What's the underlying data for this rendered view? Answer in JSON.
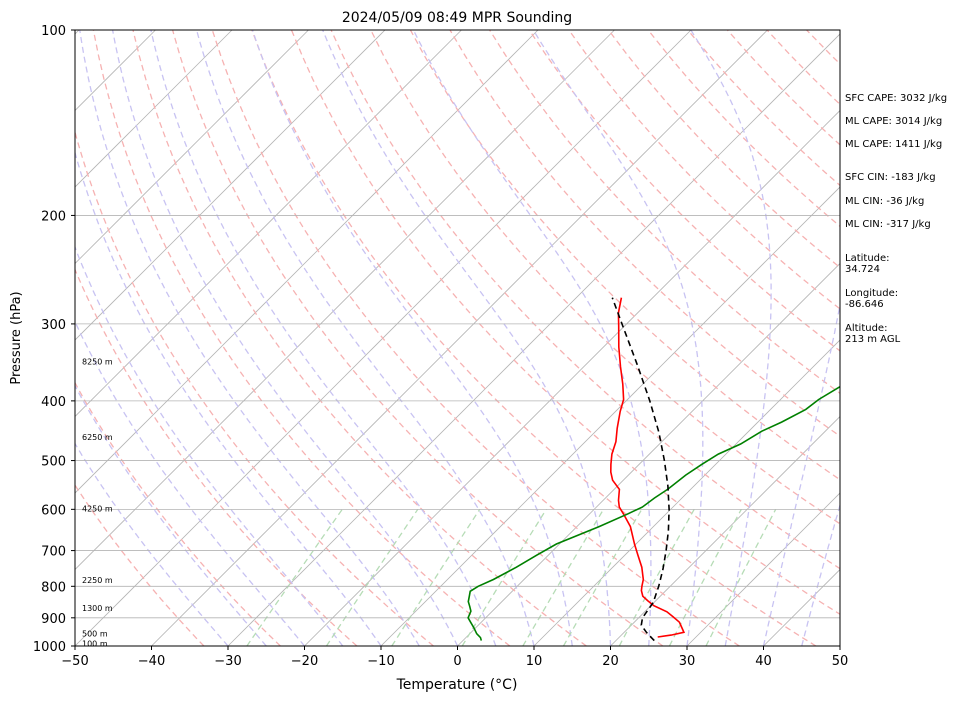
{
  "chart_data": {
    "type": "line",
    "title": "2024/05/09 08:49 MPR Sounding",
    "xlabel": "Temperature (°C)",
    "ylabel": "Pressure (hPa)",
    "xlim": [
      -50,
      50
    ],
    "ylim": [
      1000,
      100
    ],
    "y_scale": "log",
    "x_ticks": [
      "−50",
      "−40",
      "−30",
      "−20",
      "−10",
      "0",
      "10",
      "20",
      "30",
      "40",
      "50"
    ],
    "y_ticks": [
      "100",
      "200",
      "300",
      "400",
      "500",
      "600",
      "700",
      "800",
      "900",
      "1000"
    ],
    "grid": true,
    "height_labels": [
      {
        "p": 345,
        "text": "8250 m"
      },
      {
        "p": 458,
        "text": "6250 m"
      },
      {
        "p": 598,
        "text": "4250 m"
      },
      {
        "p": 782,
        "text": "2250 m"
      },
      {
        "p": 868,
        "text": "1300 m"
      },
      {
        "p": 954,
        "text": "500 m"
      },
      {
        "p": 991,
        "text": "100 m"
      }
    ],
    "series": [
      {
        "color": "#ff0000",
        "points": [
          [
            967,
            25
          ],
          [
            960,
            26.5
          ],
          [
            950,
            27.8
          ],
          [
            935,
            27
          ],
          [
            915,
            25.9
          ],
          [
            897,
            24.4
          ],
          [
            880,
            22.9
          ],
          [
            860,
            20.4
          ],
          [
            845,
            19.0
          ],
          [
            830,
            17.7
          ],
          [
            813,
            16.8
          ],
          [
            800,
            16.3
          ],
          [
            780,
            15.6
          ],
          [
            745,
            13.8
          ],
          [
            712,
            11.7
          ],
          [
            683,
            9.8
          ],
          [
            640,
            7.0
          ],
          [
            610,
            4.4
          ],
          [
            595,
            3.0
          ],
          [
            580,
            2.0
          ],
          [
            557,
            0.7
          ],
          [
            538,
            -1.4
          ],
          [
            522,
            -2.7
          ],
          [
            507,
            -3.7
          ],
          [
            488,
            -4.9
          ],
          [
            466,
            -6.0
          ],
          [
            443,
            -7.6
          ],
          [
            416,
            -9.4
          ],
          [
            398,
            -10.5
          ],
          [
            376,
            -12.6
          ],
          [
            352,
            -15.2
          ],
          [
            327,
            -18.0
          ],
          [
            302,
            -20.8
          ],
          [
            288,
            -22.5
          ],
          [
            272,
            -24.1
          ]
        ]
      },
      {
        "color": "#008000",
        "points": [
          [
            980,
            2.4
          ],
          [
            969,
            1.9
          ],
          [
            955,
            0.9
          ],
          [
            935,
            -0.2
          ],
          [
            915,
            -1.4
          ],
          [
            900,
            -2.3
          ],
          [
            878,
            -2.8
          ],
          [
            862,
            -3.6
          ],
          [
            847,
            -4.4
          ],
          [
            829,
            -5.0
          ],
          [
            815,
            -5.5
          ],
          [
            800,
            -5.1
          ],
          [
            780,
            -4.0
          ],
          [
            745,
            -2.6
          ],
          [
            712,
            -1.5
          ],
          [
            683,
            -0.4
          ],
          [
            640,
            2.9
          ],
          [
            610,
            5.0
          ],
          [
            595,
            6.0
          ],
          [
            575,
            6.4
          ],
          [
            556,
            7.0
          ],
          [
            528,
            7.5
          ],
          [
            507,
            8.2
          ],
          [
            488,
            9.0
          ],
          [
            470,
            10.6
          ],
          [
            448,
            11.7
          ],
          [
            433,
            13.1
          ],
          [
            413,
            14.6
          ],
          [
            398,
            15.0
          ],
          [
            376,
            16.3
          ],
          [
            361,
            17.6
          ],
          [
            340,
            18.4
          ],
          [
            322,
            18.6
          ],
          [
            306,
            18.9
          ],
          [
            294,
            19.3
          ],
          [
            281,
            19.9
          ],
          [
            272,
            20.5
          ]
        ]
      },
      {
        "color": "#000000",
        "dashed": true,
        "points": [
          [
            980,
            25.0
          ],
          [
            950,
            22.9
          ],
          [
            925,
            21.3
          ],
          [
            900,
            20.5
          ],
          [
            850,
            19.9
          ],
          [
            800,
            18.5
          ],
          [
            750,
            16.8
          ],
          [
            700,
            14.8
          ],
          [
            650,
            12.5
          ],
          [
            600,
            9.8
          ],
          [
            550,
            6.6
          ],
          [
            500,
            2.8
          ],
          [
            450,
            -1.6
          ],
          [
            400,
            -6.9
          ],
          [
            350,
            -13.2
          ],
          [
            300,
            -20.6
          ],
          [
            272,
            -25.3
          ]
        ]
      }
    ],
    "annotations": [
      {
        "label": "SFC CAPE: 3032 J/kg"
      },
      {
        "label": "ML CAPE: 3014 J/kg"
      },
      {
        "label": "ML CAPE: 1411 J/kg"
      },
      {
        "label": "SFC CIN: -183 J/kg"
      },
      {
        "label": "ML CIN: -36 J/kg"
      },
      {
        "label": "ML CIN: -317 J/kg"
      },
      {
        "label": "Latitude:\n34.724"
      },
      {
        "label": "Longitude:\n-86.646"
      },
      {
        "label": "Altitude:\n213 m AGL"
      }
    ]
  },
  "side_info": {
    "sfc_cape": "SFC CAPE: 3032 J/kg",
    "ml_cape": "ML CAPE: 3014 J/kg",
    "ml_cape_2": "ML CAPE: 1411 J/kg",
    "sfc_cin": "SFC CIN: -183 J/kg",
    "ml_cin": "ML CIN: -36 J/kg",
    "ml_cin_2": "ML CIN: -317 J/kg",
    "latitude": "Latitude:\n34.724",
    "longitude": "Longitude:\n-86.646",
    "altitude": "Altitude:\n213 m AGL"
  }
}
